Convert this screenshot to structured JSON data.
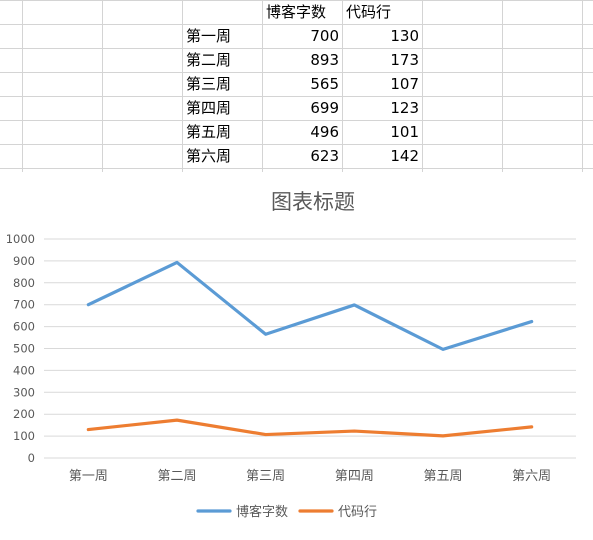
{
  "sheet": {
    "headers": [
      "博客字数",
      "代码行"
    ],
    "rows": [
      {
        "label": "第一周",
        "v1": "700",
        "v2": "130"
      },
      {
        "label": "第二周",
        "v1": "893",
        "v2": "173"
      },
      {
        "label": "第三周",
        "v1": "565",
        "v2": "107"
      },
      {
        "label": "第四周",
        "v1": "699",
        "v2": "123"
      },
      {
        "label": "第五周",
        "v1": "496",
        "v2": "101"
      },
      {
        "label": "第六周",
        "v1": "623",
        "v2": "142"
      }
    ]
  },
  "chart_data": {
    "type": "line",
    "title": "图表标题",
    "categories": [
      "第一周",
      "第二周",
      "第三周",
      "第四周",
      "第五周",
      "第六周"
    ],
    "series": [
      {
        "name": "博客字数",
        "values": [
          700,
          893,
          565,
          699,
          496,
          623
        ],
        "color": "#5b9bd5"
      },
      {
        "name": "代码行",
        "values": [
          130,
          173,
          107,
          123,
          101,
          142
        ],
        "color": "#ed7d31"
      }
    ],
    "ylim": [
      0,
      1000
    ],
    "yticks": [
      0,
      100,
      200,
      300,
      400,
      500,
      600,
      700,
      800,
      900,
      1000
    ],
    "grid": true,
    "legend": "bottom",
    "colors": {
      "gridline": "#d9d9d9",
      "text": "#595959"
    }
  }
}
